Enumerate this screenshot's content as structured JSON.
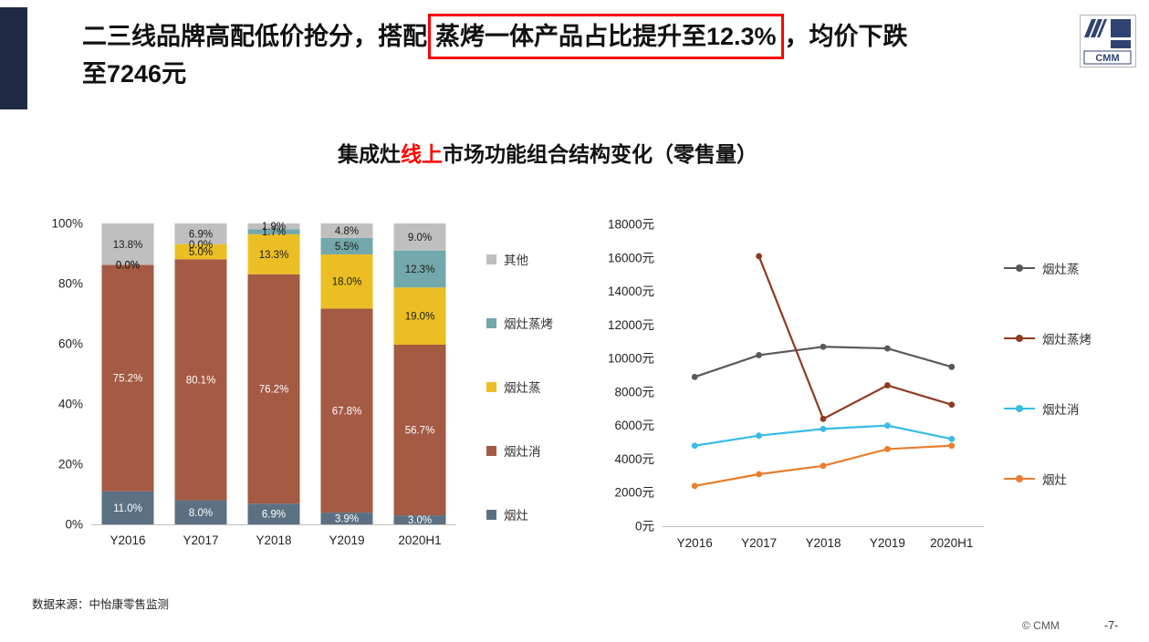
{
  "header": {
    "title_part1": "二三线品牌高配低价抢分，搭配",
    "title_highlight": "蒸烤一体产品占比提升至12.3%",
    "title_part2": "，均价下跌",
    "title_line2": "至7246元"
  },
  "logo": {
    "text": "CMM"
  },
  "chart_header": {
    "black1": "集成灶",
    "red": "线上",
    "black2": "市场功能组合结构变化（零售量）"
  },
  "footer": {
    "source": "数据来源：中怡康零售监测",
    "copyright": "© CMM",
    "page_number": "-7-"
  },
  "colors": {
    "accent_bar": "#1F2A44",
    "highlight_box": "#FF0000",
    "title_highlight_red": "#FF0000"
  },
  "chart_data": [
    {
      "type": "bar",
      "stacked": true,
      "unit": "%",
      "title": "集成灶线上市场功能组合结构变化（零售量）",
      "categories": [
        "Y2016",
        "Y2017",
        "Y2018",
        "Y2019",
        "2020H1"
      ],
      "series": [
        {
          "name": "烟灶",
          "color": "#5B7083",
          "label_color": "#FFFFFF",
          "values": [
            11.0,
            8.0,
            6.9,
            3.9,
            3.0
          ]
        },
        {
          "name": "烟灶消",
          "color": "#A45A43",
          "label_color": "#FFFFFF",
          "values": [
            75.2,
            80.1,
            76.2,
            67.8,
            56.7
          ]
        },
        {
          "name": "烟灶蒸",
          "color": "#EBBF24",
          "label_color": "#1a1a1a",
          "values": [
            0.0,
            5.0,
            13.3,
            18.0,
            19.0
          ]
        },
        {
          "name": "烟灶蒸烤",
          "color": "#72A8AB",
          "label_color": "#1a1a1a",
          "values": [
            0.0,
            0.0,
            1.7,
            5.5,
            12.3
          ]
        },
        {
          "name": "其他",
          "color": "#BFBFBF",
          "label_color": "#1a1a1a",
          "values": [
            13.8,
            6.9,
            1.9,
            4.8,
            9.0
          ]
        }
      ],
      "ylim": [
        0,
        100
      ],
      "yticks": [
        "0%",
        "20%",
        "40%",
        "60%",
        "80%",
        "100%"
      ],
      "legend_position": "right",
      "grid": false
    },
    {
      "type": "line",
      "unit": "元",
      "categories": [
        "Y2016",
        "Y2017",
        "Y2018",
        "Y2019",
        "2020H1"
      ],
      "series": [
        {
          "name": "烟灶蒸",
          "color": "#595959",
          "values": [
            8900,
            10200,
            10700,
            10600,
            9500
          ]
        },
        {
          "name": "烟灶蒸烤",
          "color": "#8E3B22",
          "values": [
            null,
            16100,
            6400,
            8400,
            7246
          ]
        },
        {
          "name": "烟灶消",
          "color": "#38BBE8",
          "values": [
            4800,
            5400,
            5800,
            6000,
            5200
          ]
        },
        {
          "name": "烟灶",
          "color": "#E87D2E",
          "values": [
            2400,
            3100,
            3600,
            4600,
            4800
          ]
        }
      ],
      "ylim": [
        0,
        18000
      ],
      "ytick_step": 2000,
      "ytick_suffix": "元",
      "legend_position": "right",
      "grid": false
    }
  ]
}
